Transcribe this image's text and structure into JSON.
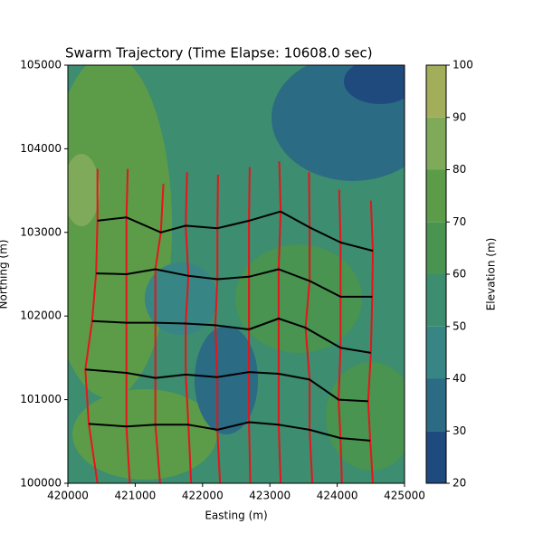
{
  "chart_data": {
    "type": "trajectory",
    "title": "Swarm Trajectory (Time Elapse: 10608.0 sec)",
    "x_label": "Easting (m)",
    "y_label": "Northing (m)",
    "xlim": [
      420000,
      425000
    ],
    "ylim": [
      100000,
      105000
    ],
    "xticks": [
      420000,
      421000,
      422000,
      423000,
      424000,
      425000
    ],
    "yticks": [
      100000,
      101000,
      102000,
      103000,
      104000,
      105000
    ],
    "colorbar": {
      "label": "Elevation (m)",
      "levels": [
        20,
        30,
        40,
        50,
        60,
        70,
        80,
        90,
        100
      ],
      "colors": [
        "#1f4a7d",
        "#2b6b84",
        "#378585",
        "#3d8d70",
        "#489450",
        "#5c9c48",
        "#7faa5a",
        "#a2ae5a"
      ]
    },
    "trajectories": {
      "color": "#e8141a",
      "paths": [
        {
          "x": [
            420440,
            420440,
            420420,
            420360,
            420260,
            420310,
            420440
          ],
          "y": [
            103760,
            103140,
            102510,
            101940,
            101360,
            100710,
            100000
          ]
        },
        {
          "x": [
            420890,
            420870,
            420870,
            420870,
            420870,
            420870,
            420920
          ],
          "y": [
            103760,
            103180,
            102500,
            101920,
            101320,
            100680,
            100000
          ]
        },
        {
          "x": [
            421420,
            421380,
            421300,
            421300,
            421300,
            421300,
            421370
          ],
          "y": [
            103580,
            103000,
            102560,
            101920,
            101260,
            100700,
            100000
          ]
        },
        {
          "x": [
            421770,
            421750,
            421790,
            421750,
            421750,
            421790,
            421830
          ],
          "y": [
            103720,
            103080,
            102480,
            101910,
            101300,
            100700,
            100000
          ]
        },
        {
          "x": [
            422230,
            422220,
            422220,
            422190,
            422220,
            422220,
            422260
          ],
          "y": [
            103690,
            103050,
            102440,
            101890,
            101270,
            100640,
            100000
          ]
        },
        {
          "x": [
            422700,
            422690,
            422690,
            422690,
            422690,
            422690,
            422710
          ],
          "y": [
            103780,
            103140,
            102470,
            101840,
            101330,
            100730,
            100000
          ]
        },
        {
          "x": [
            423140,
            423160,
            423130,
            423130,
            423130,
            423130,
            423160
          ],
          "y": [
            103850,
            103250,
            102560,
            101970,
            101310,
            100700,
            100000
          ]
        },
        {
          "x": [
            423580,
            423590,
            423590,
            423530,
            423590,
            423590,
            423630
          ],
          "y": [
            103720,
            103060,
            102420,
            101860,
            101240,
            100640,
            100000
          ]
        },
        {
          "x": [
            424030,
            424050,
            424050,
            424050,
            424020,
            424050,
            424070
          ],
          "y": [
            103510,
            102880,
            102230,
            101620,
            101000,
            100540,
            100000
          ]
        },
        {
          "x": [
            424500,
            424530,
            424520,
            424500,
            424460,
            424490,
            424530
          ],
          "y": [
            103380,
            102780,
            102230,
            101560,
            100980,
            100510,
            100000
          ]
        }
      ]
    },
    "formation": {
      "color": "#000000",
      "paths": [
        {
          "x": [
            420440,
            420870,
            421380,
            421750,
            422220,
            422690,
            423160,
            423590,
            424050,
            424530
          ],
          "y": [
            103140,
            103180,
            103000,
            103080,
            103050,
            103140,
            103250,
            103060,
            102880,
            102780
          ]
        },
        {
          "x": [
            420420,
            420870,
            421300,
            421790,
            422220,
            422690,
            423130,
            423590,
            424050,
            424520
          ],
          "y": [
            102510,
            102500,
            102560,
            102480,
            102440,
            102470,
            102560,
            102420,
            102230,
            102230
          ]
        },
        {
          "x": [
            420360,
            420870,
            421300,
            421750,
            422190,
            422690,
            423130,
            423530,
            424050,
            424500
          ],
          "y": [
            101940,
            101920,
            101920,
            101910,
            101890,
            101840,
            101970,
            101860,
            101620,
            101560
          ]
        },
        {
          "x": [
            420260,
            420870,
            421300,
            421750,
            422220,
            422690,
            423130,
            423590,
            424020,
            424460
          ],
          "y": [
            101360,
            101320,
            101260,
            101300,
            101270,
            101330,
            101310,
            101240,
            101000,
            100980
          ]
        },
        {
          "x": [
            420310,
            420870,
            421300,
            421790,
            422220,
            422690,
            423130,
            423590,
            424050,
            424490
          ],
          "y": [
            100710,
            100680,
            100700,
            100700,
            100640,
            100730,
            100700,
            100640,
            100540,
            100510
          ]
        }
      ]
    }
  }
}
